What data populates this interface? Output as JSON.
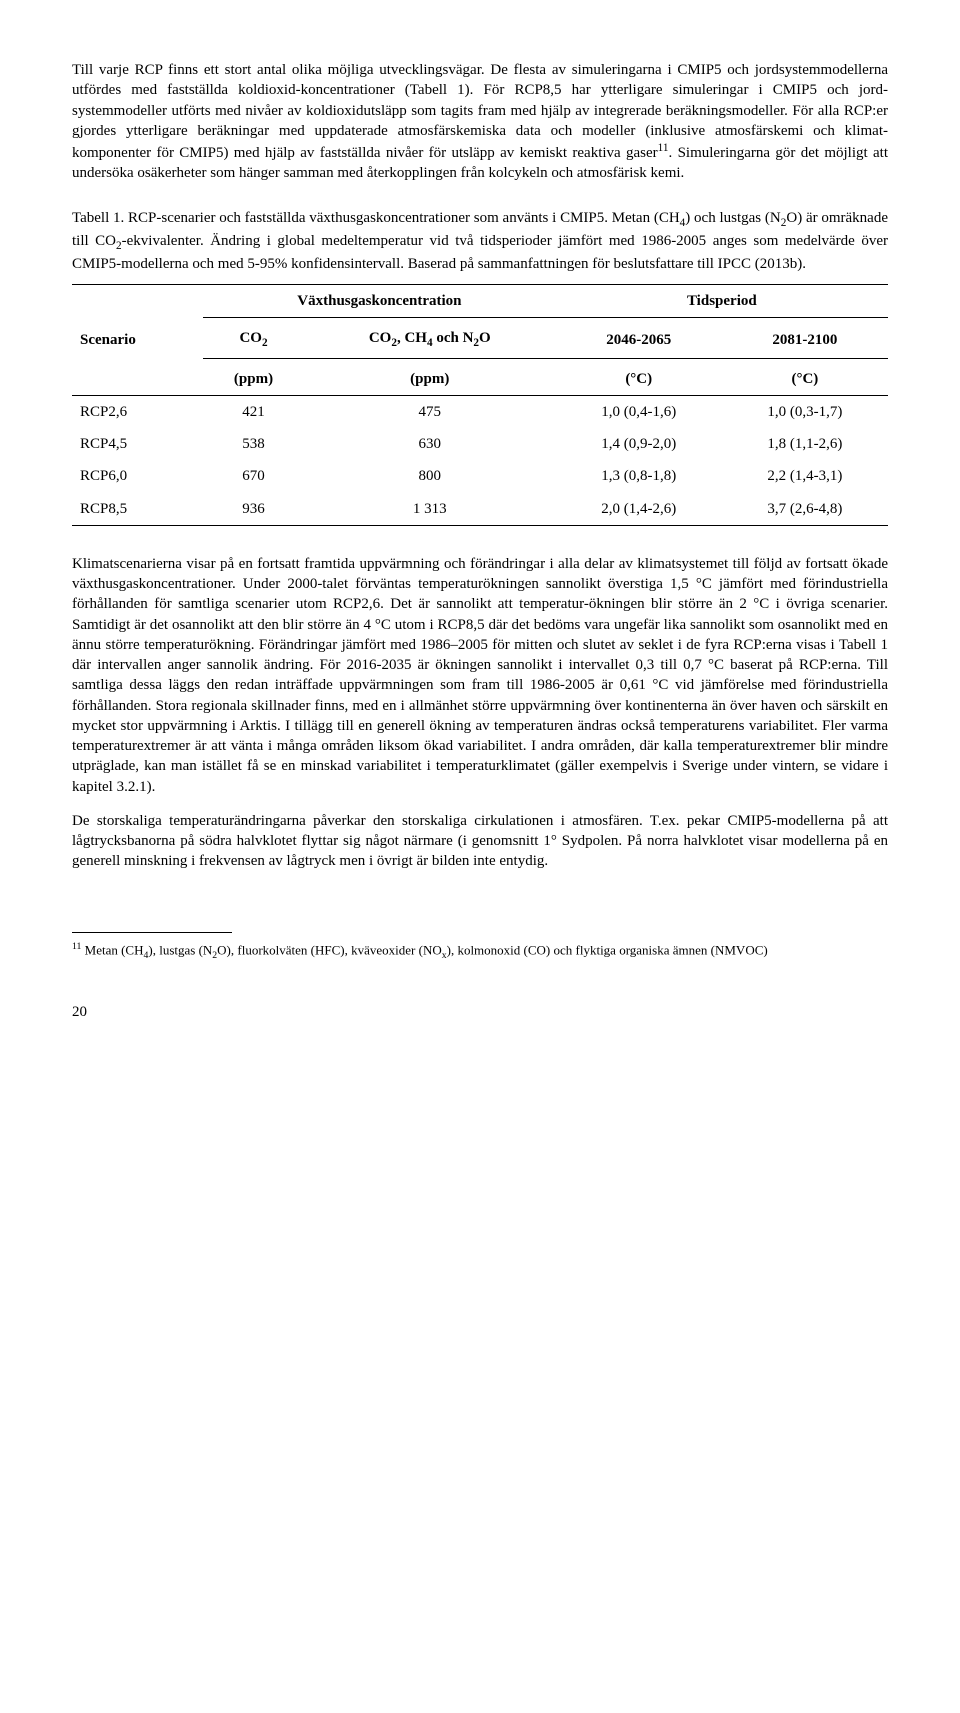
{
  "para1": "Till varje RCP finns ett stort antal olika möjliga utvecklingsvägar. De flesta av simuleringarna i CMIP5 och jordsystemmodellerna utfördes med fastställda koldioxid-koncentrationer (Tabell 1). För RCP8,5 har ytterligare simuleringar i CMIP5 och jord-systemmodeller utförts med nivåer av koldioxidutsläpp som tagits fram med hjälp av integrerade beräkningsmodeller. För alla RCP:er gjordes ytterligare beräkningar med uppdaterade atmosfärskemiska data och modeller (inklusive atmosfärskemi och klimat-komponenter för CMIP5) med hjälp av fastställda nivåer för utsläpp av kemiskt reaktiva gaser",
  "para1_fn": "11",
  "para1_tail": ". Simuleringarna gör det möjligt att undersöka osäkerheter som hänger samman med återkopplingen från kolcykeln och atmosfärisk kemi.",
  "table_caption_lead": "Tabell 1. RCP-scenarier och fastställda växthusgaskoncentrationer som använts i CMIP5. Metan (CH",
  "table_caption_mid1": ") och lustgas (N",
  "table_caption_mid2": "O) är omräknade till CO",
  "table_caption_tail": "-ekvivalenter. Ändring i global medeltemperatur vid två tidsperioder jämfört med 1986-2005 anges som medelvärde över CMIP5-modellerna och med 5-95% konfidensintervall. Baserad på sammanfattningen för beslutsfattare till IPCC (2013b).",
  "table": {
    "head": {
      "scenario": "Scenario",
      "conc": "Växthusgaskoncentration",
      "period": "Tidsperiod",
      "co2": "CO",
      "co2_ch4_n2o_a": "CO",
      "co2_ch4_n2o_b": ", CH",
      "co2_ch4_n2o_c": " och N",
      "co2_ch4_n2o_d": "O",
      "ppm": "(ppm)",
      "p1": "2046-2065",
      "p2": "2081-2100",
      "degc": "(°C)"
    },
    "rows": [
      {
        "s": "RCP2,6",
        "c1": "421",
        "c2": "475",
        "t1": "1,0 (0,4-1,6)",
        "t2": "1,0 (0,3-1,7)"
      },
      {
        "s": "RCP4,5",
        "c1": "538",
        "c2": "630",
        "t1": "1,4 (0,9-2,0)",
        "t2": "1,8 (1,1-2,6)"
      },
      {
        "s": "RCP6,0",
        "c1": "670",
        "c2": "800",
        "t1": "1,3 (0,8-1,8)",
        "t2": "2,2 (1,4-3,1)"
      },
      {
        "s": "RCP8,5",
        "c1": "936",
        "c2": "1 313",
        "t1": "2,0 (1,4-2,6)",
        "t2": "3,7 (2,6-4,8)"
      }
    ]
  },
  "para2": "Klimatscenarierna visar på en fortsatt framtida uppvärmning och förändringar i alla delar av klimatsystemet till följd av fortsatt ökade växthusgaskoncentrationer. Under 2000-talet förväntas temperaturökningen sannolikt överstiga 1,5 °C jämfört med förindustriella förhållanden för samtliga scenarier utom RCP2,6. Det är sannolikt att temperatur-ökningen blir större än 2 °C i övriga scenarier. Samtidigt är det osannolikt att den blir större än 4 °C utom i RCP8,5 där det bedöms vara ungefär lika sannolikt som osannolikt med en ännu större temperaturökning. Förändringar jämfört med 1986–2005 för mitten och slutet av seklet i de fyra RCP:erna visas i Tabell 1 där intervallen anger sannolik ändring. För 2016-2035 är ökningen sannolikt i intervallet 0,3 till 0,7 °C baserat på RCP:erna. Till samtliga dessa läggs den redan inträffade uppvärmningen som fram till 1986-2005 är 0,61 °C vid jämförelse med förindustriella förhållanden. Stora regionala skillnader finns, med en i allmänhet större uppvärmning över kontinenterna än över haven och särskilt en mycket stor uppvärmning i Arktis. I tillägg till en generell ökning av temperaturen ändras också temperaturens variabilitet. Fler varma temperaturextremer är att vänta i många områden liksom ökad variabilitet. I andra områden, där kalla temperaturextremer blir mindre utpräglade, kan man istället få se en minskad variabilitet i temperaturklimatet (gäller exempelvis i Sverige under vintern, se vidare i kapitel 3.2.1).",
  "para3": "De storskaliga temperaturändringarna påverkar den storskaliga cirkulationen i atmosfären. T.ex. pekar CMIP5-modellerna på att lågtrycksbanorna på södra halvklotet flyttar sig något närmare (i genomsnitt 1° Sydpolen. På norra halvklotet visar modellerna på en generell minskning i frekvensen av lågtryck men i övrigt är bilden inte entydig.",
  "footnote_num": "11",
  "footnote_a": " Metan (CH",
  "footnote_b": "), lustgas (N",
  "footnote_c": "O), fluorkolväten (HFC), kväveoxider (NO",
  "footnote_d": "), kolmonoxid (CO) och flyktiga organiska ämnen (NMVOC)",
  "page_number": "20"
}
